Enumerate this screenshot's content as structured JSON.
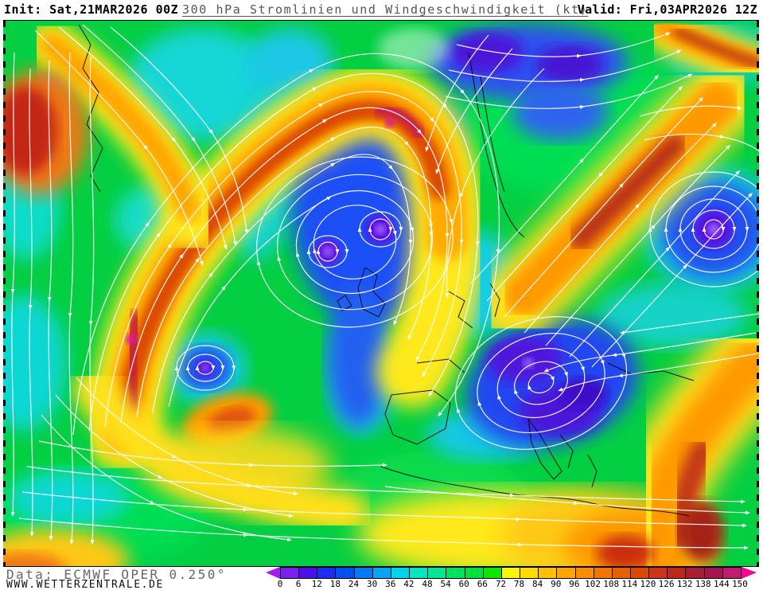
{
  "header": {
    "init": "Init: Sat,21MAR2026 00Z",
    "title": "300 hPa Stromlinien und Windgeschwindigkeit (kt)",
    "valid": "Valid: Fri,03APR2026 12Z"
  },
  "footer": {
    "data_source": "Data: ECMWF OPER 0.250°",
    "website": "WWW.WETTERZENTRALE.DE"
  },
  "colorbar": {
    "unit": "kt",
    "ticks": [
      "0",
      "6",
      "12",
      "18",
      "24",
      "30",
      "36",
      "42",
      "48",
      "54",
      "60",
      "66",
      "72",
      "78",
      "84",
      "90",
      "96",
      "102",
      "108",
      "114",
      "120",
      "126",
      "132",
      "138",
      "144",
      "150"
    ],
    "segments": [
      "#7B1FF0",
      "#4E0FE6",
      "#1C2CF0",
      "#0050F0",
      "#0578F5",
      "#05A5F5",
      "#00D2F0",
      "#00E6C3",
      "#05E695",
      "#00E15F",
      "#00E13C",
      "#0AE600",
      "#FAF500",
      "#FFDC00",
      "#FFBE00",
      "#FFA500",
      "#FF8C05",
      "#F57300",
      "#E65F00",
      "#DC4800",
      "#CD3418",
      "#BE2819",
      "#AA1E32",
      "#A5144B",
      "#C31973"
    ],
    "arrow_left": "#A01FF0",
    "arrow_right": "#EE0A8C"
  }
}
